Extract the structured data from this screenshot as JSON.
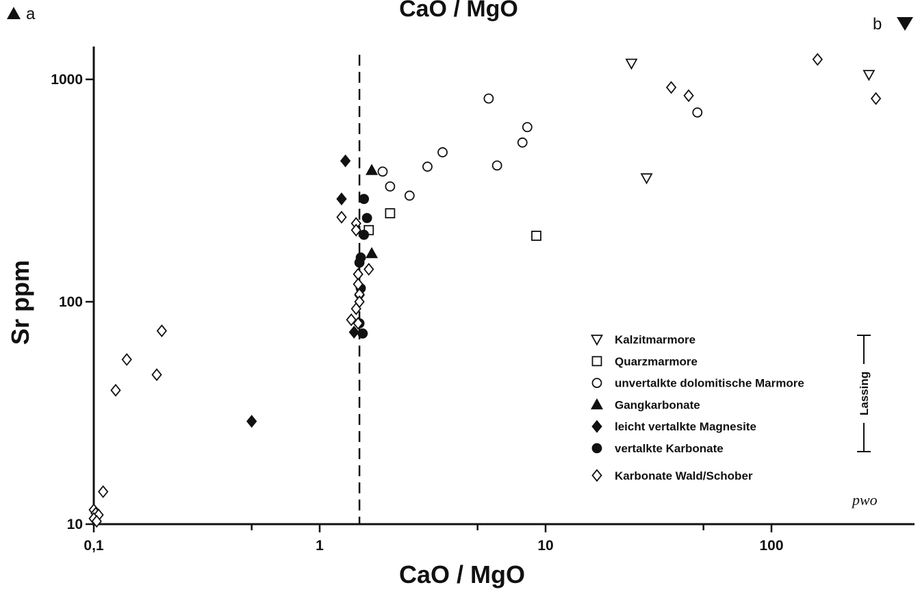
{
  "chart_data": {
    "type": "scatter",
    "top_title": "CaO / MgO",
    "xlabel": "CaO / MgO",
    "ylabel": "Sr ppm",
    "x_scale": "log",
    "y_scale": "log",
    "xlim": [
      0.1,
      400
    ],
    "ylim": [
      10,
      1400
    ],
    "x_ticks": [
      {
        "value": 0.1,
        "label": "0,1"
      },
      {
        "value": 1,
        "label": "1"
      },
      {
        "value": 10,
        "label": "10"
      },
      {
        "value": 100,
        "label": "100"
      }
    ],
    "y_ticks": [
      {
        "value": 10,
        "label": "10"
      },
      {
        "value": 100,
        "label": "100"
      },
      {
        "value": 1000,
        "label": "1000"
      }
    ],
    "reference_line": {
      "x": 1.5,
      "style": "dashed"
    },
    "panel_labels": {
      "left": "a",
      "right": "b"
    },
    "grid": false,
    "legend_position": "lower-right",
    "series": [
      {
        "name": "Kalzitmarmore",
        "marker": "triangle-down-open",
        "points": [
          [
            24,
            1180
          ],
          [
            270,
            1050
          ],
          [
            28,
            360
          ]
        ]
      },
      {
        "name": "Quarzmarmore",
        "marker": "square-open",
        "points": [
          [
            2.05,
            250
          ],
          [
            1.65,
            210
          ],
          [
            9.1,
            198
          ]
        ]
      },
      {
        "name": "unvertalkte dolomitische Marmore",
        "marker": "circle-open",
        "points": [
          [
            5.6,
            820
          ],
          [
            47,
            710
          ],
          [
            8.3,
            610
          ],
          [
            7.9,
            520
          ],
          [
            3.5,
            470
          ],
          [
            3.0,
            405
          ],
          [
            6.1,
            410
          ],
          [
            1.9,
            385
          ],
          [
            2.05,
            330
          ],
          [
            2.5,
            300
          ]
        ]
      },
      {
        "name": "Gangkarbonate",
        "marker": "triangle-up-filled",
        "points": [
          [
            1.7,
            390
          ],
          [
            1.7,
            165
          ]
        ]
      },
      {
        "name": "leicht vertalkte Magnesite",
        "marker": "diamond-filled",
        "points": [
          [
            1.3,
            430
          ],
          [
            1.25,
            290
          ],
          [
            1.5,
            107
          ],
          [
            1.42,
            73
          ],
          [
            0.5,
            29
          ]
        ]
      },
      {
        "name": "vertalkte Karbonate",
        "marker": "circle-filled",
        "points": [
          [
            1.57,
            290
          ],
          [
            1.62,
            238
          ],
          [
            1.57,
            200
          ],
          [
            1.52,
            158
          ],
          [
            1.5,
            150
          ],
          [
            1.52,
            115
          ],
          [
            1.5,
            80
          ],
          [
            1.55,
            72
          ]
        ]
      },
      {
        "name": "Karbonate Wald/Schober",
        "marker": "diamond-open",
        "points": [
          [
            160,
            1230
          ],
          [
            36,
            920
          ],
          [
            43,
            845
          ],
          [
            290,
            820
          ],
          [
            1.25,
            240
          ],
          [
            1.45,
            225
          ],
          [
            1.45,
            210
          ],
          [
            1.65,
            140
          ],
          [
            1.48,
            133
          ],
          [
            1.48,
            120
          ],
          [
            1.5,
            108
          ],
          [
            1.5,
            100
          ],
          [
            1.45,
            93
          ],
          [
            1.38,
            83
          ],
          [
            1.48,
            80
          ],
          [
            0.2,
            74
          ],
          [
            0.14,
            55
          ],
          [
            0.19,
            47
          ],
          [
            0.125,
            40
          ],
          [
            0.11,
            14
          ],
          [
            0.1,
            11.6
          ],
          [
            0.102,
            11.2
          ],
          [
            0.105,
            11
          ],
          [
            0.1,
            10.6
          ],
          [
            0.103,
            10.3
          ]
        ]
      }
    ],
    "bracket": {
      "label": "Lassing",
      "series_span": [
        "Gangkarbonate",
        "leicht vertalkte Magnesite",
        "vertalkte Karbonate"
      ]
    },
    "signature": "pwo"
  }
}
